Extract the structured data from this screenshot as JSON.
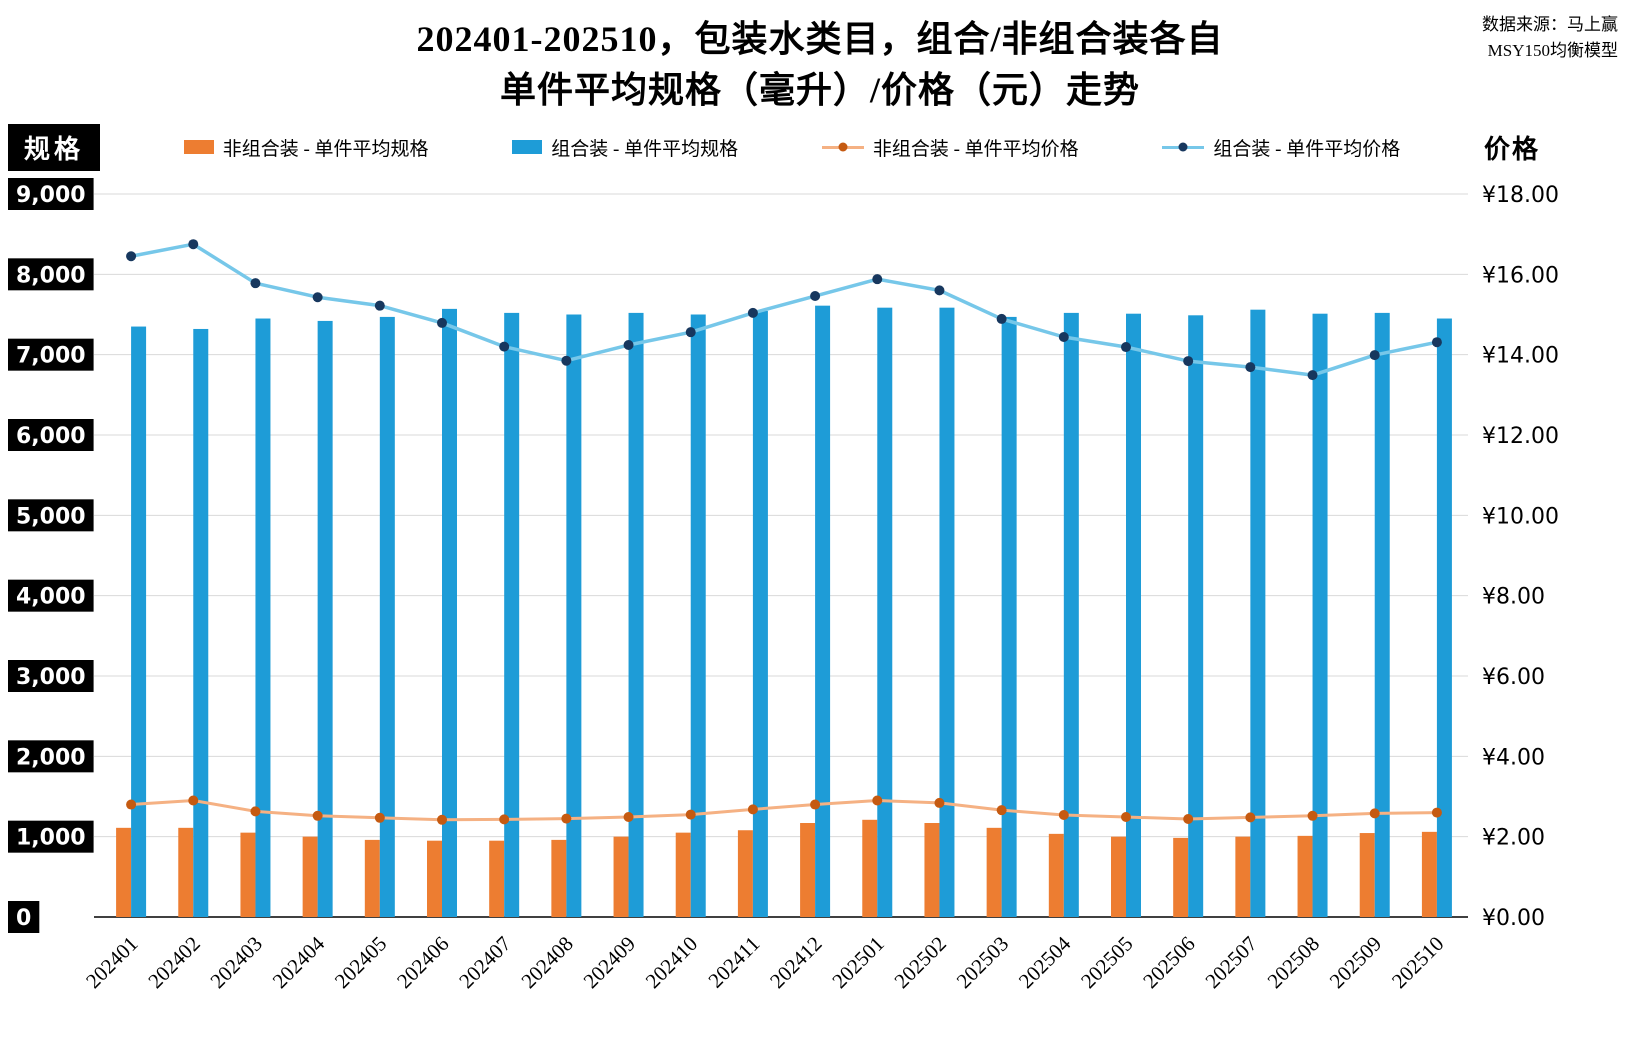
{
  "header": {
    "title_line1": "202401-202510，包装水类目，组合/非组合装各自",
    "title_line2": "单件平均规格（毫升）/价格（元）走势",
    "source_line1": "数据来源：马上赢",
    "source_line2": "MSY150均衡模型"
  },
  "axes": {
    "left_label": "规格",
    "right_label": "价格",
    "left_ticks": [
      "9,000",
      "8,000",
      "7,000",
      "6,000",
      "5,000",
      "4,000",
      "3,000",
      "2,000",
      "1,000",
      "0"
    ],
    "right_ticks": [
      "¥18.00",
      "¥16.00",
      "¥14.00",
      "¥12.00",
      "¥10.00",
      "¥8.00",
      "¥6.00",
      "¥4.00",
      "¥2.00",
      "¥0.00"
    ]
  },
  "legend": [
    {
      "label": "非组合装 - 单件平均规格",
      "type": "bar",
      "color": "#ED7D31"
    },
    {
      "label": "组合装 - 单件平均规格",
      "type": "bar",
      "color": "#1E9CD7"
    },
    {
      "label": "非组合装 - 单件平均价格",
      "type": "line",
      "color": "#F5B183",
      "dot": "#C55A11"
    },
    {
      "label": "组合装 - 单件平均价格",
      "type": "line",
      "color": "#76C7E9",
      "dot": "#17375E"
    }
  ],
  "chart_data": {
    "type": "bar",
    "subtype": "bar+line dual-axis combo",
    "title": "202401-202510，包装水类目，组合/非组合装各自单件平均规格（毫升）/价格（元）走势",
    "grid": true,
    "legend_position": "top",
    "categories": [
      "202401",
      "202402",
      "202403",
      "202404",
      "202405",
      "202406",
      "202407",
      "202408",
      "202409",
      "202410",
      "202411",
      "202412",
      "202501",
      "202502",
      "202503",
      "202504",
      "202505",
      "202506",
      "202507",
      "202508",
      "202509",
      "202510"
    ],
    "left_axis": {
      "label": "规格",
      "min": 0,
      "max": 9000,
      "step": 1000
    },
    "right_axis": {
      "label": "价格",
      "min": 0,
      "max": 18,
      "step": 2,
      "format": "¥0.00"
    },
    "series": [
      {
        "name": "非组合装 - 单件平均规格",
        "type": "bar",
        "axis": "left",
        "color": "#ED7D31",
        "values": [
          1110,
          1110,
          1050,
          1000,
          960,
          950,
          950,
          960,
          1000,
          1050,
          1080,
          1170,
          1210,
          1170,
          1110,
          1035,
          1000,
          985,
          1000,
          1010,
          1045,
          1060
        ]
      },
      {
        "name": "组合装 - 单件平均规格",
        "type": "bar",
        "axis": "left",
        "color": "#1E9CD7",
        "values": [
          7350,
          7320,
          7450,
          7420,
          7470,
          7570,
          7520,
          7500,
          7520,
          7500,
          7545,
          7610,
          7585,
          7585,
          7470,
          7520,
          7510,
          7490,
          7560,
          7510,
          7520,
          7450
        ]
      },
      {
        "name": "非组合装 - 单件平均价格",
        "type": "line",
        "axis": "right",
        "color": "#F5B183",
        "dot_color": "#C55A11",
        "values": [
          2.8,
          2.9,
          2.63,
          2.52,
          2.47,
          2.42,
          2.43,
          2.45,
          2.49,
          2.55,
          2.68,
          2.8,
          2.9,
          2.84,
          2.66,
          2.54,
          2.49,
          2.44,
          2.48,
          2.52,
          2.58,
          2.6
        ]
      },
      {
        "name": "组合装 - 单件平均价格",
        "type": "line",
        "axis": "right",
        "color": "#76C7E9",
        "dot_color": "#17375E",
        "values": [
          16.45,
          16.75,
          15.78,
          15.43,
          15.22,
          14.79,
          14.2,
          13.85,
          14.24,
          14.56,
          15.04,
          15.46,
          15.88,
          15.6,
          14.89,
          14.44,
          14.19,
          13.84,
          13.69,
          13.49,
          13.99,
          14.31
        ]
      }
    ]
  }
}
